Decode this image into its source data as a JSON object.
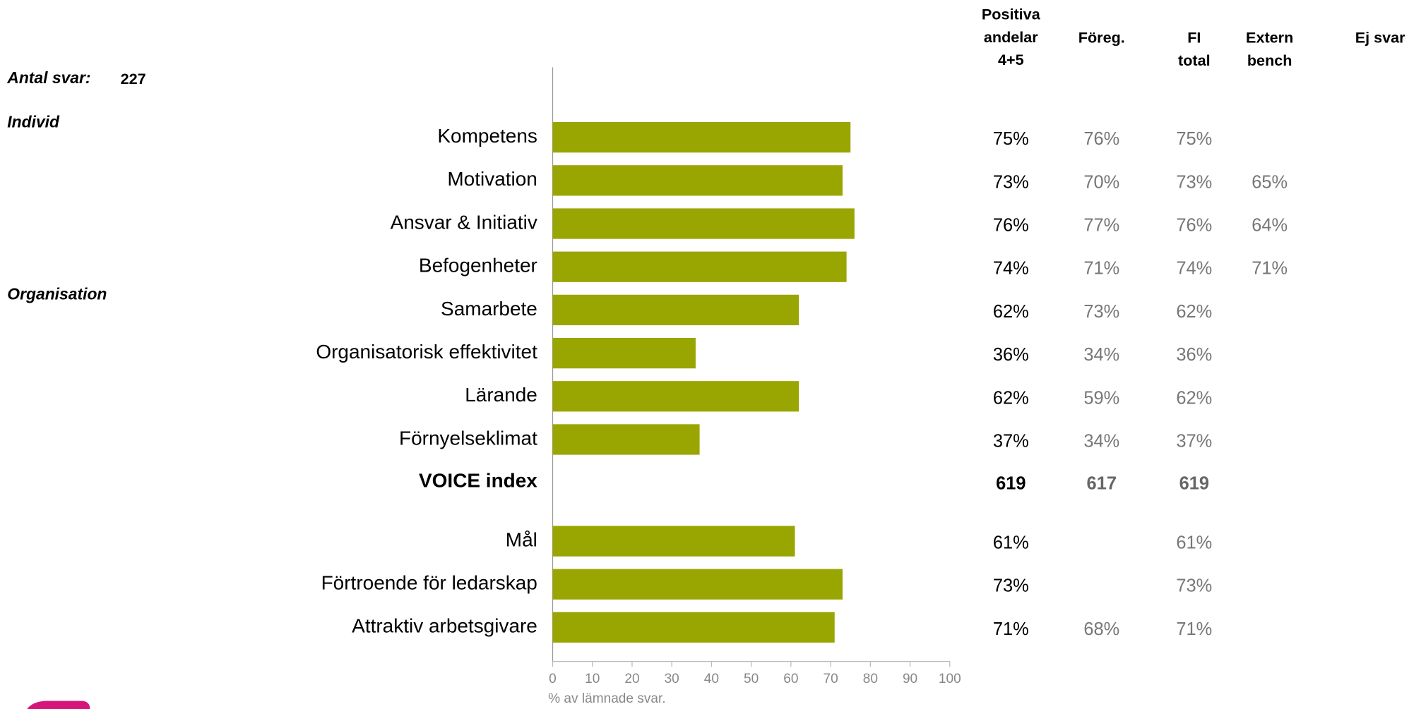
{
  "chart_data": {
    "type": "bar",
    "response_label": "Antal svar:",
    "response_count": "227",
    "sections": [
      "Individ",
      "Organisation"
    ],
    "categories": [
      "Kompetens",
      "Motivation",
      "Ansvar & Initiativ",
      "Befogenheter",
      "Samarbete",
      "Organisatorisk effektivitet",
      "Lärande",
      "Förnyelseklimat",
      "Mål",
      "Förtroende för ledarskap",
      "Attraktiv arbetsgivare"
    ],
    "values": [
      75,
      73,
      76,
      74,
      62,
      36,
      62,
      37,
      61,
      73,
      71
    ],
    "value_labels": [
      "75%",
      "73%",
      "76%",
      "74%",
      "62%",
      "36%",
      "62%",
      "37%",
      "61%",
      "73%",
      "71%"
    ],
    "color": "#99a500",
    "xlim": [
      0,
      100
    ],
    "xticks": [
      0,
      10,
      20,
      30,
      40,
      50,
      60,
      70,
      80,
      90,
      100
    ],
    "x_label": "% av lämnade svar.",
    "index": {
      "label": "VOICE index",
      "values": [
        "619",
        "617",
        "619"
      ]
    },
    "columns": [
      {
        "header": [
          "Positiva",
          "andelar",
          "4+5"
        ]
      },
      {
        "header": [
          "Föreg."
        ],
        "cells": [
          "76%",
          "70%",
          "77%",
          "71%",
          "73%",
          "34%",
          "59%",
          "34%",
          null,
          null,
          "68%"
        ]
      },
      {
        "header": [
          "FI",
          "total"
        ],
        "cells": [
          "75%",
          "73%",
          "76%",
          "74%",
          "62%",
          "36%",
          "62%",
          "37%",
          "61%",
          "73%",
          "71%"
        ]
      },
      {
        "header": [
          "Extern",
          "bench"
        ],
        "cells": [
          null,
          "65%",
          "64%",
          "71%",
          null,
          null,
          null,
          null,
          null,
          null,
          null
        ]
      },
      {
        "header": [
          "Ej svar"
        ],
        "cells": [
          null,
          null,
          null,
          null,
          null,
          null,
          null,
          null,
          null,
          null,
          null
        ]
      }
    ]
  }
}
